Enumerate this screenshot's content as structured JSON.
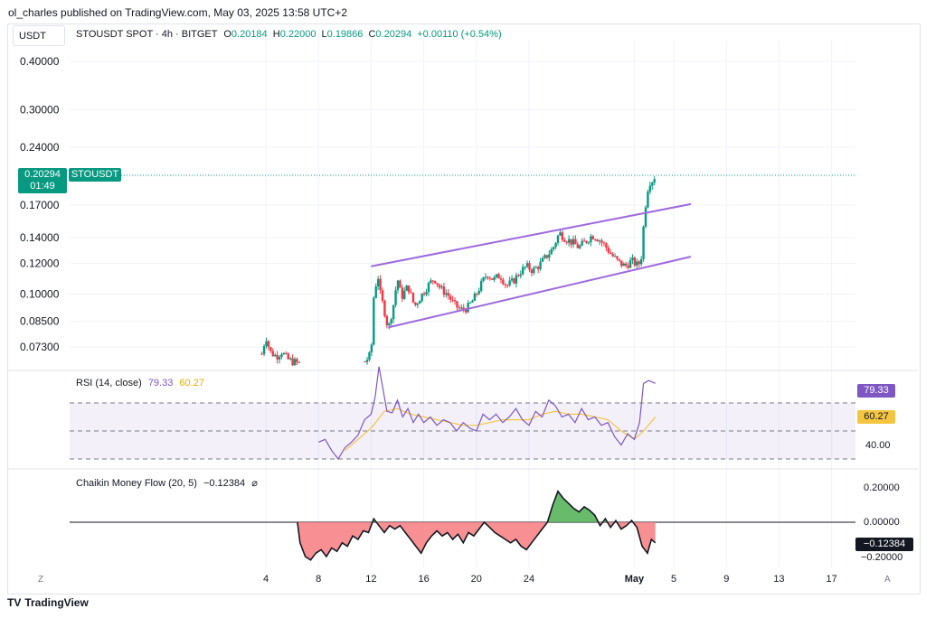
{
  "header": {
    "byline": "ol_charles published on TradingView.com, May 03, 2025 13:58 UTC+2",
    "quote_currency": "USDT"
  },
  "legend": {
    "symbol_line": "STOUSDT SPOT · 4h · BITGET",
    "o_key": "O",
    "o_val": "0.20184",
    "h_key": "H",
    "h_val": "0.22000",
    "l_key": "L",
    "l_val": "0.19866",
    "c_key": "C",
    "c_val": "0.20294",
    "change": "+0.00110 (+0.54%)"
  },
  "price_badge": {
    "symbol": "STOUSDT",
    "price": "0.20294",
    "countdown": "01:49"
  },
  "rsi": {
    "label": "RSI (14, close)",
    "value": "79.33",
    "ma_value": "60.27",
    "axis_label": "40.00",
    "upper_band": 70,
    "middle": 50,
    "lower_band": 30
  },
  "cmf": {
    "label": "Chaikin Money Flow (20, 5)",
    "value": "−0.12384",
    "symbol": "⌀",
    "axis_labels": [
      "0.20000",
      "0.00000",
      "−0.20000"
    ]
  },
  "footer": {
    "brand": "TradingView",
    "logo_text": "TV"
  },
  "axis_corner": {
    "left": "Z",
    "right": "A"
  },
  "colors": {
    "up": "#089981",
    "down": "#f23645",
    "channel": "#9c6ade",
    "rsi": "#7e57c2",
    "rsi_ma": "#f5c542",
    "cmf_pos": "#4caf50",
    "cmf_neg": "#f77c80"
  },
  "chart_data": {
    "type": "candlestick",
    "symbol": "STOUSDT",
    "timeframe": "4h",
    "y_scale": "log",
    "price_ticks": [
      "0.40000",
      "0.30000",
      "0.24000",
      "0.17000",
      "0.14000",
      "0.12000",
      "0.10000",
      "0.08500",
      "0.07300"
    ],
    "price_tick_values": [
      0.4,
      0.3,
      0.24,
      0.17,
      0.14,
      0.12,
      0.1,
      0.085,
      0.073
    ],
    "x_ticks": [
      "4",
      "8",
      "12",
      "16",
      "20",
      "24",
      "May",
      "5",
      "9",
      "13",
      "17"
    ],
    "x_tick_days": [
      4,
      8,
      12,
      16,
      20,
      24,
      32,
      35,
      39,
      43,
      47
    ],
    "ohlc_path": [
      [
        3.7,
        0.07
      ],
      [
        4.0,
        0.078
      ],
      [
        4.3,
        0.071
      ],
      [
        4.8,
        0.069
      ],
      [
        5.2,
        0.071
      ],
      [
        5.6,
        0.068
      ],
      [
        6.0,
        0.067
      ],
      [
        6.6,
        0.066
      ],
      [
        11.4,
        0.066
      ],
      [
        12.0,
        0.07
      ],
      [
        12.2,
        0.098
      ],
      [
        12.5,
        0.113
      ],
      [
        12.7,
        0.1
      ],
      [
        13.0,
        0.091
      ],
      [
        13.3,
        0.081
      ],
      [
        13.7,
        0.094
      ],
      [
        14.0,
        0.11
      ],
      [
        14.3,
        0.098
      ],
      [
        14.8,
        0.105
      ],
      [
        15.3,
        0.093
      ],
      [
        15.8,
        0.099
      ],
      [
        16.3,
        0.105
      ],
      [
        16.8,
        0.11
      ],
      [
        17.3,
        0.103
      ],
      [
        17.8,
        0.1
      ],
      [
        18.3,
        0.094
      ],
      [
        18.8,
        0.091
      ],
      [
        19.3,
        0.092
      ],
      [
        19.8,
        0.097
      ],
      [
        20.3,
        0.105
      ],
      [
        20.8,
        0.113
      ],
      [
        21.3,
        0.109
      ],
      [
        21.8,
        0.112
      ],
      [
        22.3,
        0.105
      ],
      [
        22.8,
        0.108
      ],
      [
        23.3,
        0.114
      ],
      [
        23.8,
        0.118
      ],
      [
        24.3,
        0.115
      ],
      [
        24.8,
        0.119
      ],
      [
        25.3,
        0.125
      ],
      [
        25.8,
        0.131
      ],
      [
        26.3,
        0.144
      ],
      [
        26.8,
        0.139
      ],
      [
        27.3,
        0.136
      ],
      [
        27.8,
        0.132
      ],
      [
        28.3,
        0.137
      ],
      [
        28.8,
        0.142
      ],
      [
        29.3,
        0.139
      ],
      [
        29.8,
        0.133
      ],
      [
        30.3,
        0.126
      ],
      [
        30.8,
        0.121
      ],
      [
        31.3,
        0.118
      ],
      [
        31.8,
        0.122
      ],
      [
        32.2,
        0.119
      ],
      [
        32.5,
        0.121
      ],
      [
        32.8,
        0.165
      ],
      [
        33.1,
        0.195
      ],
      [
        33.4,
        0.197
      ],
      [
        33.6,
        0.203
      ]
    ],
    "last_price": 0.20294,
    "channel": {
      "upper": [
        [
          12.0,
          0.118
        ],
        [
          36.3,
          0.171
        ]
      ],
      "lower": [
        [
          13.3,
          0.082
        ],
        [
          36.3,
          0.125
        ]
      ]
    },
    "rsi_series": [
      [
        8.0,
        42
      ],
      [
        8.5,
        44
      ],
      [
        9.0,
        36
      ],
      [
        9.5,
        30
      ],
      [
        10.0,
        38
      ],
      [
        10.5,
        42
      ],
      [
        11.0,
        47
      ],
      [
        11.5,
        58
      ],
      [
        12.0,
        62
      ],
      [
        12.3,
        74
      ],
      [
        12.6,
        96
      ],
      [
        12.9,
        80
      ],
      [
        13.2,
        64
      ],
      [
        13.6,
        63
      ],
      [
        14.0,
        72
      ],
      [
        14.4,
        60
      ],
      [
        14.8,
        66
      ],
      [
        15.2,
        56
      ],
      [
        15.6,
        62
      ],
      [
        16.0,
        56
      ],
      [
        16.5,
        60
      ],
      [
        17.0,
        54
      ],
      [
        17.5,
        58
      ],
      [
        18.0,
        56
      ],
      [
        18.5,
        50
      ],
      [
        19.0,
        56
      ],
      [
        19.5,
        52
      ],
      [
        20.0,
        50
      ],
      [
        20.5,
        62
      ],
      [
        21.0,
        58
      ],
      [
        21.5,
        62
      ],
      [
        22.0,
        56
      ],
      [
        22.5,
        60
      ],
      [
        23.0,
        66
      ],
      [
        23.5,
        58
      ],
      [
        24.0,
        54
      ],
      [
        24.5,
        64
      ],
      [
        25.0,
        60
      ],
      [
        25.5,
        72
      ],
      [
        26.0,
        68
      ],
      [
        26.5,
        60
      ],
      [
        27.0,
        62
      ],
      [
        27.5,
        56
      ],
      [
        28.0,
        66
      ],
      [
        28.5,
        58
      ],
      [
        29.0,
        60
      ],
      [
        29.5,
        54
      ],
      [
        30.0,
        56
      ],
      [
        30.5,
        46
      ],
      [
        31.0,
        40
      ],
      [
        31.5,
        48
      ],
      [
        32.0,
        44
      ],
      [
        32.4,
        56
      ],
      [
        32.7,
        84
      ],
      [
        33.1,
        86
      ],
      [
        33.6,
        84
      ]
    ],
    "rsi_ma_series": [
      [
        10.0,
        36
      ],
      [
        11.0,
        44
      ],
      [
        12.0,
        52
      ],
      [
        13.0,
        64
      ],
      [
        14.0,
        66
      ],
      [
        15.0,
        62
      ],
      [
        16.0,
        60
      ],
      [
        17.0,
        58
      ],
      [
        18.0,
        56
      ],
      [
        19.0,
        54
      ],
      [
        20.0,
        54
      ],
      [
        21.0,
        56
      ],
      [
        22.0,
        58
      ],
      [
        23.0,
        58
      ],
      [
        24.0,
        58
      ],
      [
        25.0,
        62
      ],
      [
        26.0,
        64
      ],
      [
        27.0,
        62
      ],
      [
        28.0,
        62
      ],
      [
        29.0,
        60
      ],
      [
        30.0,
        58
      ],
      [
        31.0,
        50
      ],
      [
        32.0,
        44
      ],
      [
        32.7,
        50
      ],
      [
        33.6,
        60
      ]
    ],
    "cmf_series": [
      [
        6.4,
        0.0
      ],
      [
        6.6,
        -0.12
      ],
      [
        7.0,
        -0.2
      ],
      [
        7.4,
        -0.22
      ],
      [
        7.8,
        -0.18
      ],
      [
        8.2,
        -0.16
      ],
      [
        8.6,
        -0.2
      ],
      [
        9.0,
        -0.15
      ],
      [
        9.4,
        -0.17
      ],
      [
        9.8,
        -0.12
      ],
      [
        10.2,
        -0.14
      ],
      [
        10.6,
        -0.08
      ],
      [
        11.0,
        -0.1
      ],
      [
        11.4,
        -0.05
      ],
      [
        11.8,
        -0.06
      ],
      [
        12.2,
        0.02
      ],
      [
        12.6,
        -0.02
      ],
      [
        13.0,
        -0.06
      ],
      [
        13.4,
        -0.02
      ],
      [
        13.8,
        -0.04
      ],
      [
        14.2,
        -0.02
      ],
      [
        14.6,
        -0.06
      ],
      [
        15.0,
        -0.1
      ],
      [
        15.4,
        -0.14
      ],
      [
        15.8,
        -0.18
      ],
      [
        16.2,
        -0.12
      ],
      [
        16.6,
        -0.08
      ],
      [
        17.0,
        -0.05
      ],
      [
        17.4,
        -0.08
      ],
      [
        17.8,
        -0.06
      ],
      [
        18.2,
        -0.1
      ],
      [
        18.6,
        -0.07
      ],
      [
        19.0,
        -0.12
      ],
      [
        19.4,
        -0.06
      ],
      [
        19.8,
        -0.08
      ],
      [
        20.2,
        -0.04
      ],
      [
        20.6,
        0.0
      ],
      [
        21.0,
        -0.03
      ],
      [
        21.4,
        -0.06
      ],
      [
        21.8,
        -0.08
      ],
      [
        22.2,
        -0.1
      ],
      [
        22.6,
        -0.12
      ],
      [
        23.0,
        -0.1
      ],
      [
        23.4,
        -0.14
      ],
      [
        23.8,
        -0.16
      ],
      [
        24.2,
        -0.12
      ],
      [
        24.6,
        -0.08
      ],
      [
        25.0,
        -0.04
      ],
      [
        25.4,
        0.0
      ],
      [
        25.8,
        0.1
      ],
      [
        26.2,
        0.18
      ],
      [
        26.6,
        0.14
      ],
      [
        27.0,
        0.11
      ],
      [
        27.4,
        0.08
      ],
      [
        27.8,
        0.06
      ],
      [
        28.2,
        0.09
      ],
      [
        28.6,
        0.07
      ],
      [
        29.0,
        0.04
      ],
      [
        29.4,
        -0.02
      ],
      [
        29.8,
        0.02
      ],
      [
        30.2,
        -0.03
      ],
      [
        30.6,
        0.01
      ],
      [
        31.0,
        -0.04
      ],
      [
        31.4,
        -0.02
      ],
      [
        31.8,
        0.01
      ],
      [
        32.2,
        -0.03
      ],
      [
        32.6,
        -0.14
      ],
      [
        33.0,
        -0.18
      ],
      [
        33.3,
        -0.1
      ],
      [
        33.6,
        -0.12
      ]
    ]
  }
}
